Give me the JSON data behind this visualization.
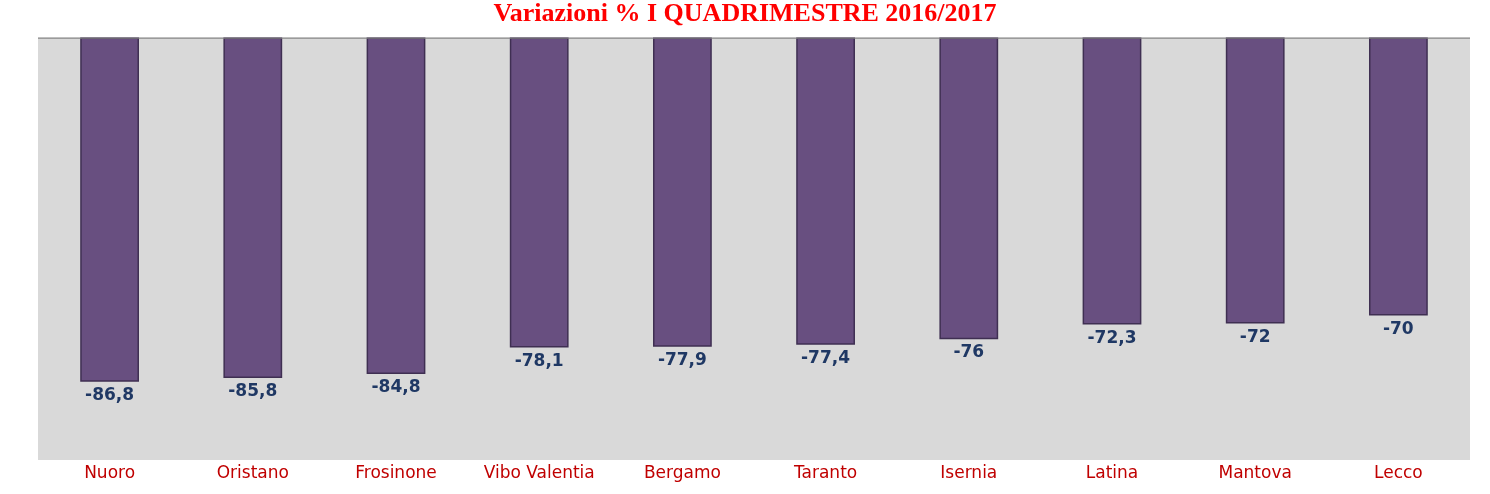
{
  "chart_data": {
    "type": "bar",
    "title": "Variazioni % I QUADRIMESTRE 2016/2017",
    "color": "#684f80",
    "categories": [
      "Nuoro",
      "Oristano",
      "Frosinone",
      "Vibo Valentia",
      "Bergamo",
      "Taranto",
      "Isernia",
      "Latina",
      "Mantova",
      "Lecco"
    ],
    "values": [
      -86.8,
      -85.8,
      -84.8,
      -78.1,
      -77.9,
      -77.4,
      -76,
      -72.3,
      -72,
      -70
    ],
    "value_labels": [
      "-86,8",
      "-85,8",
      "-84,8",
      "-78,1",
      "-77,9",
      "-77,4",
      "-76",
      "-72,3",
      "-72",
      "-70"
    ]
  }
}
